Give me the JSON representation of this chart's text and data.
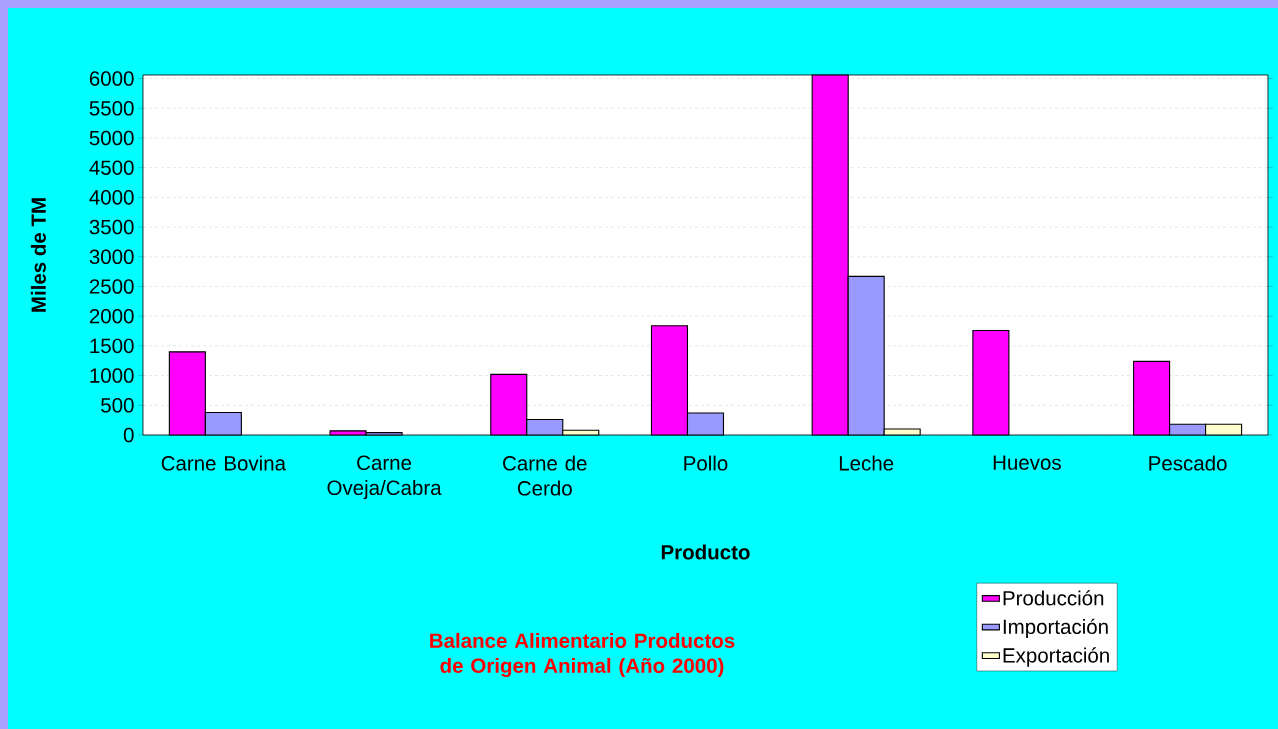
{
  "chart_data": {
    "type": "bar",
    "title": "Balance Alimentario Productos de Origen Animal (Año 2000)",
    "xlabel": "Producto",
    "ylabel": "Miles de TM",
    "categories": [
      "Carne Bovina",
      "Carne Oveja/Cabra",
      "Carne de Cerdo",
      "Pollo",
      "Leche",
      "Huevos",
      "Pescado"
    ],
    "series": [
      {
        "name": "Producción",
        "color": "#ff00ff",
        "values": [
          1400,
          70,
          1020,
          1840,
          6060,
          1760,
          1240
        ]
      },
      {
        "name": "Importación",
        "color": "#9999ff",
        "values": [
          380,
          40,
          260,
          370,
          2670,
          null,
          180
        ]
      },
      {
        "name": "Exportación",
        "color": "#ffffcc",
        "values": [
          null,
          null,
          80,
          null,
          100,
          null,
          180
        ]
      }
    ],
    "ylim": [
      0,
      6060
    ],
    "yticks": [
      0,
      500,
      1000,
      1500,
      2000,
      2500,
      3000,
      3500,
      4000,
      4500,
      5000,
      5500,
      6000
    ],
    "grid": "y",
    "legend": "bottom right"
  }
}
